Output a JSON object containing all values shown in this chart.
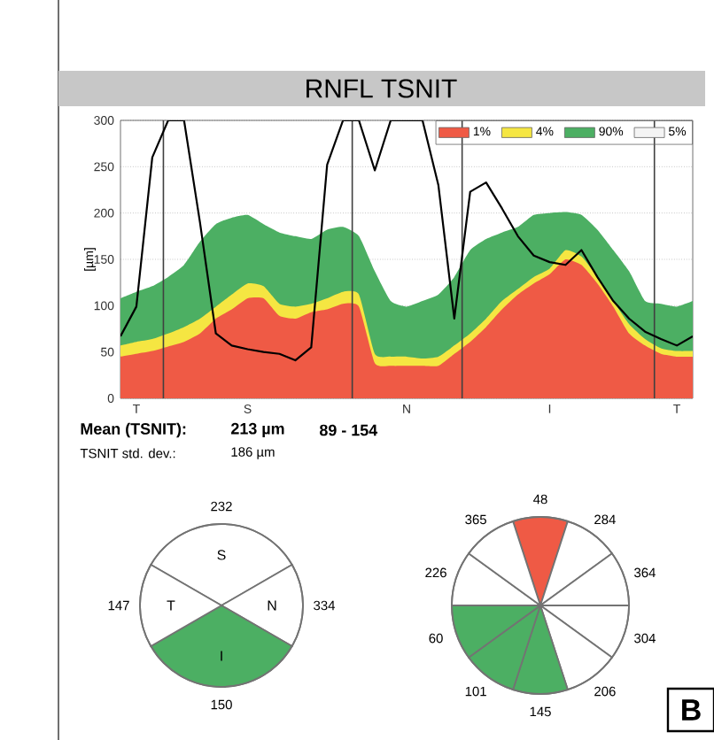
{
  "chart_data": [
    {
      "type": "area",
      "title": "RNFL  TSNIT",
      "ylabel": "[µm]",
      "stacked": true,
      "grid": "y",
      "legend": "top right",
      "categories": [
        null,
        "T",
        null,
        null,
        null,
        null,
        null,
        null,
        "S",
        null,
        null,
        null,
        null,
        null,
        null,
        null,
        null,
        null,
        "N",
        null,
        null,
        null,
        null,
        null,
        null,
        null,
        null,
        "I",
        null,
        null,
        null,
        null,
        null,
        null,
        null,
        "T",
        null
      ],
      "ylim": [
        0,
        300
      ],
      "yticks": [
        0,
        50,
        100,
        150,
        200,
        250,
        300
      ],
      "series": [
        {
          "name": "1%",
          "color": "#ef5a45",
          "values": [
            45,
            48,
            51,
            56,
            61,
            70,
            86,
            96,
            108,
            108,
            89,
            86,
            93,
            96,
            102,
            99,
            38,
            35,
            35,
            35,
            35,
            48,
            61,
            77,
            96,
            112,
            124,
            134,
            150,
            144,
            124,
            99,
            70,
            57,
            48,
            45,
            45
          ]
        },
        {
          "name": "4%",
          "color": "#f5e642",
          "values": [
            12,
            13,
            13,
            14,
            16,
            16,
            13,
            16,
            16,
            13,
            13,
            13,
            9,
            12,
            13,
            13,
            10,
            10,
            10,
            8,
            10,
            9,
            9,
            9,
            9,
            6,
            7,
            6,
            10,
            9,
            7,
            6,
            10,
            7,
            6,
            6,
            6
          ]
        },
        {
          "name": "90%",
          "color": "#4caf63",
          "values": [
            51,
            54,
            57,
            61,
            67,
            83,
            89,
            83,
            74,
            67,
            77,
            76,
            70,
            74,
            70,
            63,
            89,
            60,
            54,
            62,
            67,
            74,
            90,
            86,
            74,
            67,
            67,
            60,
            41,
            45,
            51,
            55,
            57,
            41,
            48,
            48,
            54
          ]
        },
        {
          "name": "5%",
          "color": "#f4f4f4",
          "values": [
            null,
            null,
            null,
            null,
            null,
            null,
            null,
            null,
            null,
            null,
            null,
            null,
            null,
            null,
            null,
            null,
            null,
            null,
            null,
            null,
            null,
            null,
            null,
            null,
            null,
            null,
            null,
            null,
            null,
            null,
            null,
            null,
            null,
            null,
            null,
            null,
            null
          ]
        },
        {
          "type": "line",
          "color": "#000000",
          "values": [
            67,
            99,
            260,
            300,
            300,
            190,
            70,
            57,
            53,
            50,
            48,
            41,
            55,
            252,
            300,
            300,
            246,
            300,
            300,
            300,
            230,
            86,
            223,
            233,
            205,
            175,
            154,
            147,
            144,
            160,
            131,
            105,
            86,
            72,
            64,
            57,
            67
          ]
        }
      ],
      "annotations": [
        "Mean (TSNIT):",
        "213 µm",
        "89 - 154",
        "TSNIT std. dev.:",
        "186 µm",
        "B"
      ]
    },
    {
      "type": "other",
      "categories": [
        "S",
        "N",
        "I",
        "T"
      ],
      "annotations": [
        "232",
        "334",
        "150",
        "147"
      ],
      "colors": [
        "#ffffff",
        "#ffffff",
        "#4caf63",
        "#ffffff"
      ]
    },
    {
      "type": "other",
      "categories": [
        null,
        null,
        null,
        null,
        null,
        null,
        null,
        null,
        null,
        null
      ],
      "annotations": [
        "48",
        "284",
        "364",
        "304",
        "206",
        "145",
        "101",
        "60",
        "226",
        "365"
      ],
      "colors": [
        "#ef5a45",
        "#ffffff",
        "#ffffff",
        "#ffffff",
        "#ffffff",
        "#4caf63",
        "#4caf63",
        "#4caf63",
        "#ffffff",
        "#ffffff"
      ]
    }
  ]
}
